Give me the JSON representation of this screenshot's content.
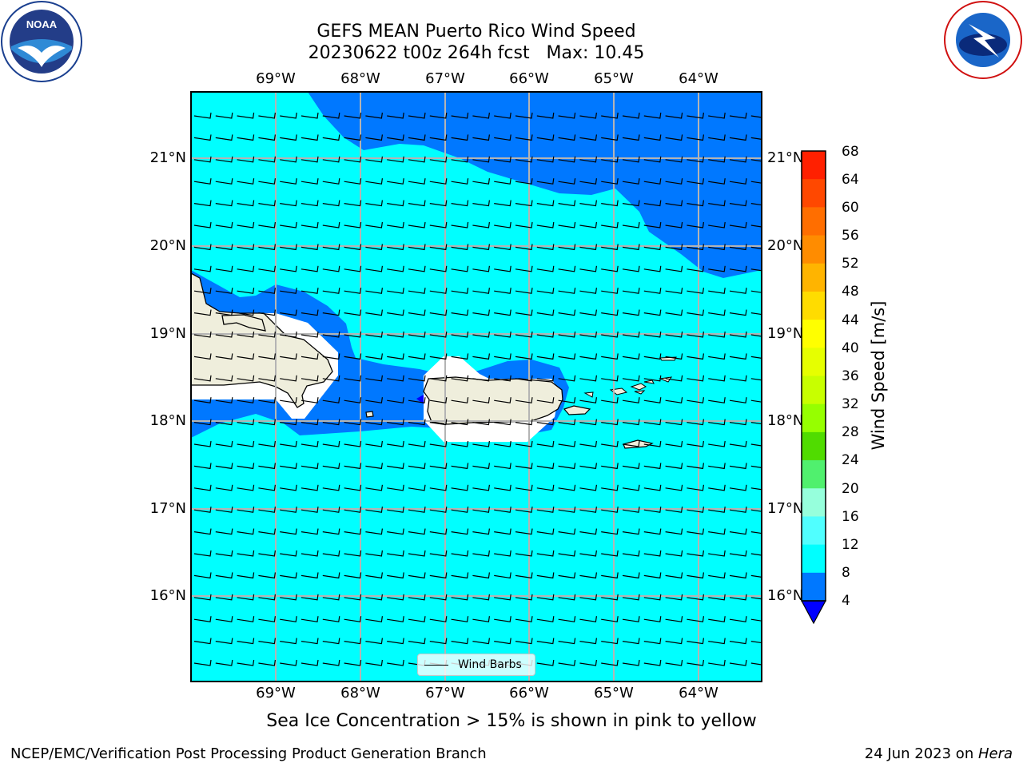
{
  "title": {
    "line1": "GEFS MEAN Puerto Rico Wind Speed",
    "line2": "20230622 t00z 264h fcst   Max: 10.45"
  },
  "logos": {
    "left": "NOAA",
    "right": "NATIONAL WEATHER SERVICE"
  },
  "map": {
    "lon_labels": [
      "69°W",
      "68°W",
      "67°W",
      "66°W",
      "65°W",
      "64°W"
    ],
    "lat_labels": [
      "21°N",
      "20°N",
      "19°N",
      "18°N",
      "17°N",
      "16°N"
    ],
    "legend_label": "Wind Barbs"
  },
  "colorbar": {
    "label": "Wind Speed [m/s]",
    "ticks": [
      "68",
      "64",
      "60",
      "56",
      "52",
      "48",
      "44",
      "40",
      "36",
      "32",
      "28",
      "24",
      "20",
      "16",
      "12",
      "8",
      "4"
    ],
    "colors": [
      "#ff0000",
      "#ff2000",
      "#ff4800",
      "#ff6e00",
      "#ff8c00",
      "#ffb400",
      "#ffdc00",
      "#ffff00",
      "#e6ff00",
      "#c8ff00",
      "#96ff00",
      "#50dc00",
      "#00e600",
      "#50f06e",
      "#96ffdc",
      "#50ffff",
      "#00ffff",
      "#0078ff",
      "#0000ff"
    ]
  },
  "caption": "Sea Ice Concentration > 15% is shown in pink to yellow",
  "footer": {
    "left": "NCEP/EMC/Verification Post Processing Product Generation Branch",
    "right_date": "24 Jun 2023 on ",
    "right_host": "Hera"
  }
}
